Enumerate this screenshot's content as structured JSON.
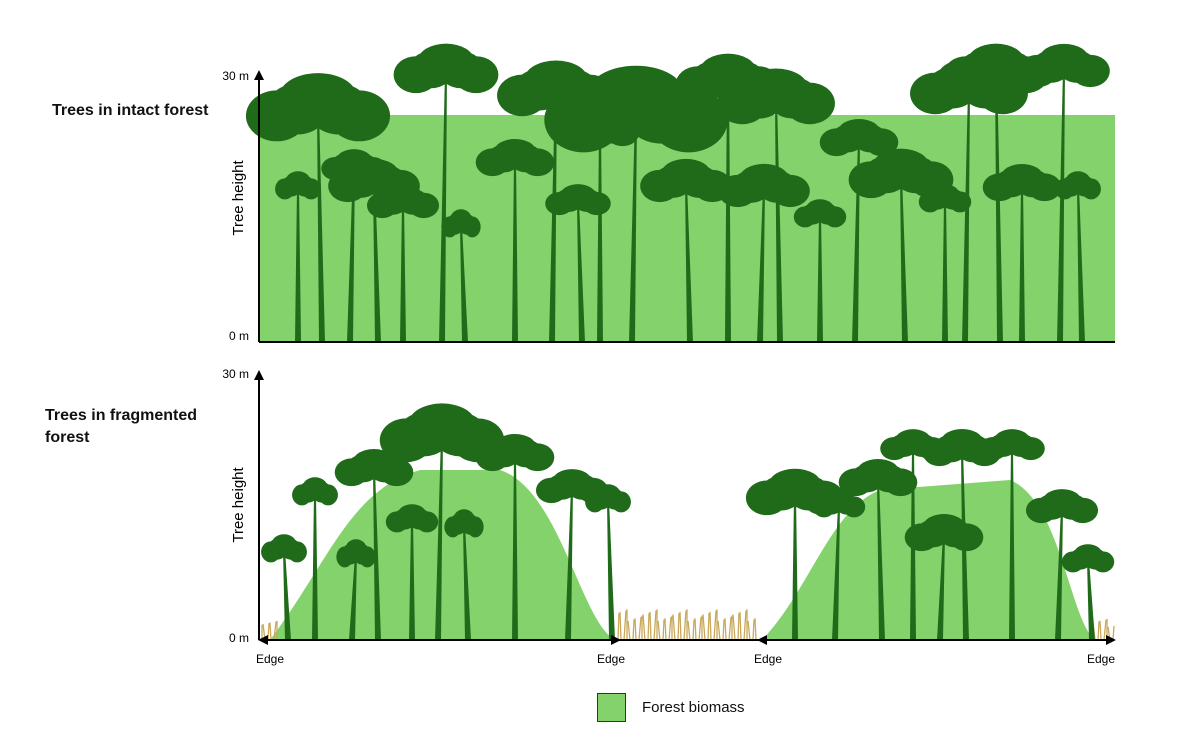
{
  "panels": {
    "intact": {
      "title": "Trees in intact forest"
    },
    "fragmented": {
      "title": "Trees in fragmented forest"
    }
  },
  "axis": {
    "y_label": "Tree height",
    "y_top_tick": "30 m",
    "y_bottom_tick": "0 m",
    "edge_label": "Edge"
  },
  "legend": {
    "label": "Forest biomass"
  },
  "colors": {
    "biomass": "#84d26b",
    "tree": "#1f6b1a",
    "grass": "#c9a85c",
    "axis": "#000000"
  }
}
